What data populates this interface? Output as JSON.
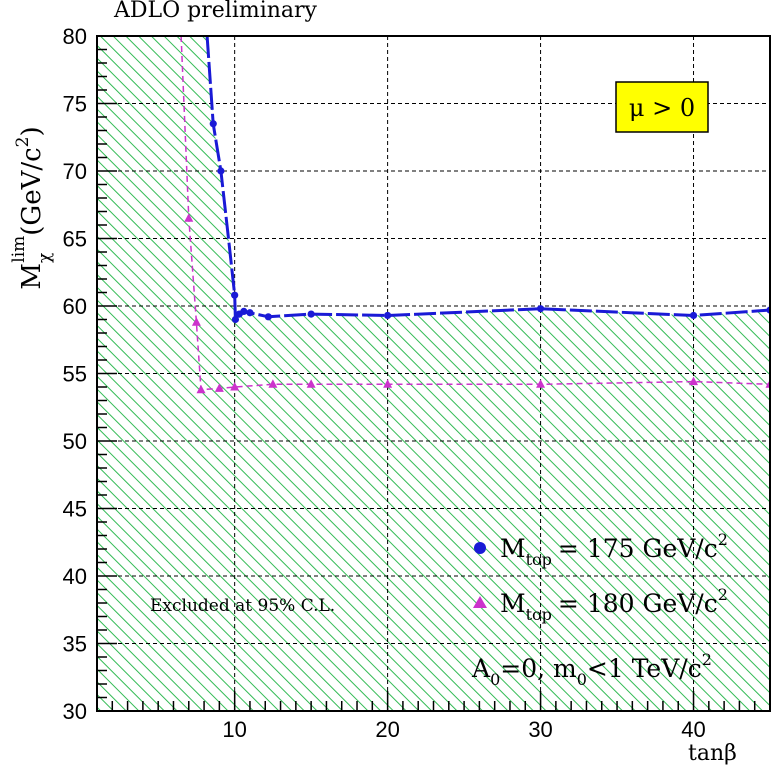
{
  "chart_data": {
    "type": "line",
    "title": "ADLO preliminary",
    "xlabel": "tanβ",
    "ylabel": {
      "main": "M",
      "sub": "χ",
      "sup": "lim",
      "unit": "(GeV/c",
      "unit_sup": "2",
      "unit_end": ")"
    },
    "xlim": [
      1,
      45
    ],
    "ylim": [
      30,
      80
    ],
    "x_ticks": [
      10,
      20,
      30,
      40
    ],
    "x_tick_labels": [
      "10",
      "20",
      "30",
      "40"
    ],
    "y_ticks": [
      30,
      35,
      40,
      45,
      50,
      55,
      60,
      65,
      70,
      75,
      80
    ],
    "y_tick_labels": [
      "30",
      "35",
      "40",
      "45",
      "50",
      "55",
      "60",
      "65",
      "70",
      "75",
      "80"
    ],
    "grid": true,
    "series": [
      {
        "name": "Mtop = 175 GeV/c2",
        "label": {
          "main": "M",
          "sub": "top",
          "rest": "= 175 GeV/c",
          "sup": "2"
        },
        "color": "#1a1ad6",
        "marker": "circle",
        "line": "dashed-thick",
        "line_x": [
          8.2,
          8.6,
          9.1,
          9.6,
          10.0,
          10.05,
          10.3,
          10.6,
          11.0,
          12.2,
          15,
          20,
          30,
          40,
          45
        ],
        "line_y": [
          80,
          73.5,
          70.0,
          65.0,
          60.8,
          59.0,
          59.4,
          59.6,
          59.5,
          59.2,
          59.4,
          59.3,
          59.8,
          59.3,
          59.7
        ],
        "marker_x": [
          8.6,
          9.1,
          10.0,
          10.05,
          10.3,
          10.6,
          11.0,
          12.2,
          15,
          20,
          30,
          40,
          45
        ],
        "marker_y": [
          73.5,
          70.0,
          60.8,
          59.0,
          59.4,
          59.6,
          59.5,
          59.2,
          59.4,
          59.3,
          59.8,
          59.3,
          59.7
        ]
      },
      {
        "name": "Mtop = 180 GeV/c2",
        "label": {
          "main": "M",
          "sub": "top",
          "rest": "= 180 GeV/c",
          "sup": "2"
        },
        "color": "#cc33cc",
        "marker": "triangle",
        "line": "dashed-thin",
        "line_x": [
          6.5,
          7.0,
          7.5,
          7.8,
          9.0,
          10,
          12.5,
          15,
          20,
          30,
          40,
          45
        ],
        "line_y": [
          80,
          66.5,
          58.8,
          53.8,
          53.9,
          54.0,
          54.2,
          54.2,
          54.2,
          54.2,
          54.4,
          54.2
        ],
        "marker_x": [
          7.0,
          7.5,
          7.8,
          9.0,
          10,
          12.5,
          15,
          20,
          30,
          40,
          45
        ],
        "marker_y": [
          66.5,
          58.8,
          53.8,
          53.9,
          54.0,
          54.2,
          54.2,
          54.2,
          54.2,
          54.4,
          54.2
        ]
      }
    ],
    "excluded_region": {
      "label": "Excluded at 95% C.L.",
      "fill_color": "#33bb55",
      "boundary_x": [
        1,
        8.2,
        8.6,
        9.1,
        9.6,
        10.0,
        10.05,
        10.3,
        10.6,
        11.0,
        12.2,
        15,
        20,
        30,
        40,
        45,
        45,
        1
      ],
      "boundary_y": [
        80,
        80,
        73.5,
        70.0,
        65.0,
        60.8,
        59.0,
        59.4,
        59.6,
        59.5,
        59.2,
        59.4,
        59.3,
        59.8,
        59.3,
        59.7,
        30,
        30
      ]
    },
    "annotations": {
      "mu_label": "μ > 0",
      "mu_box_color": "#ffff00",
      "params": {
        "a": "A",
        "a_sub": "0",
        "a_rest": "=0, m",
        "m_sub": "0",
        "m_rest": "<1 TeV/c",
        "m_sup": "2"
      }
    }
  }
}
